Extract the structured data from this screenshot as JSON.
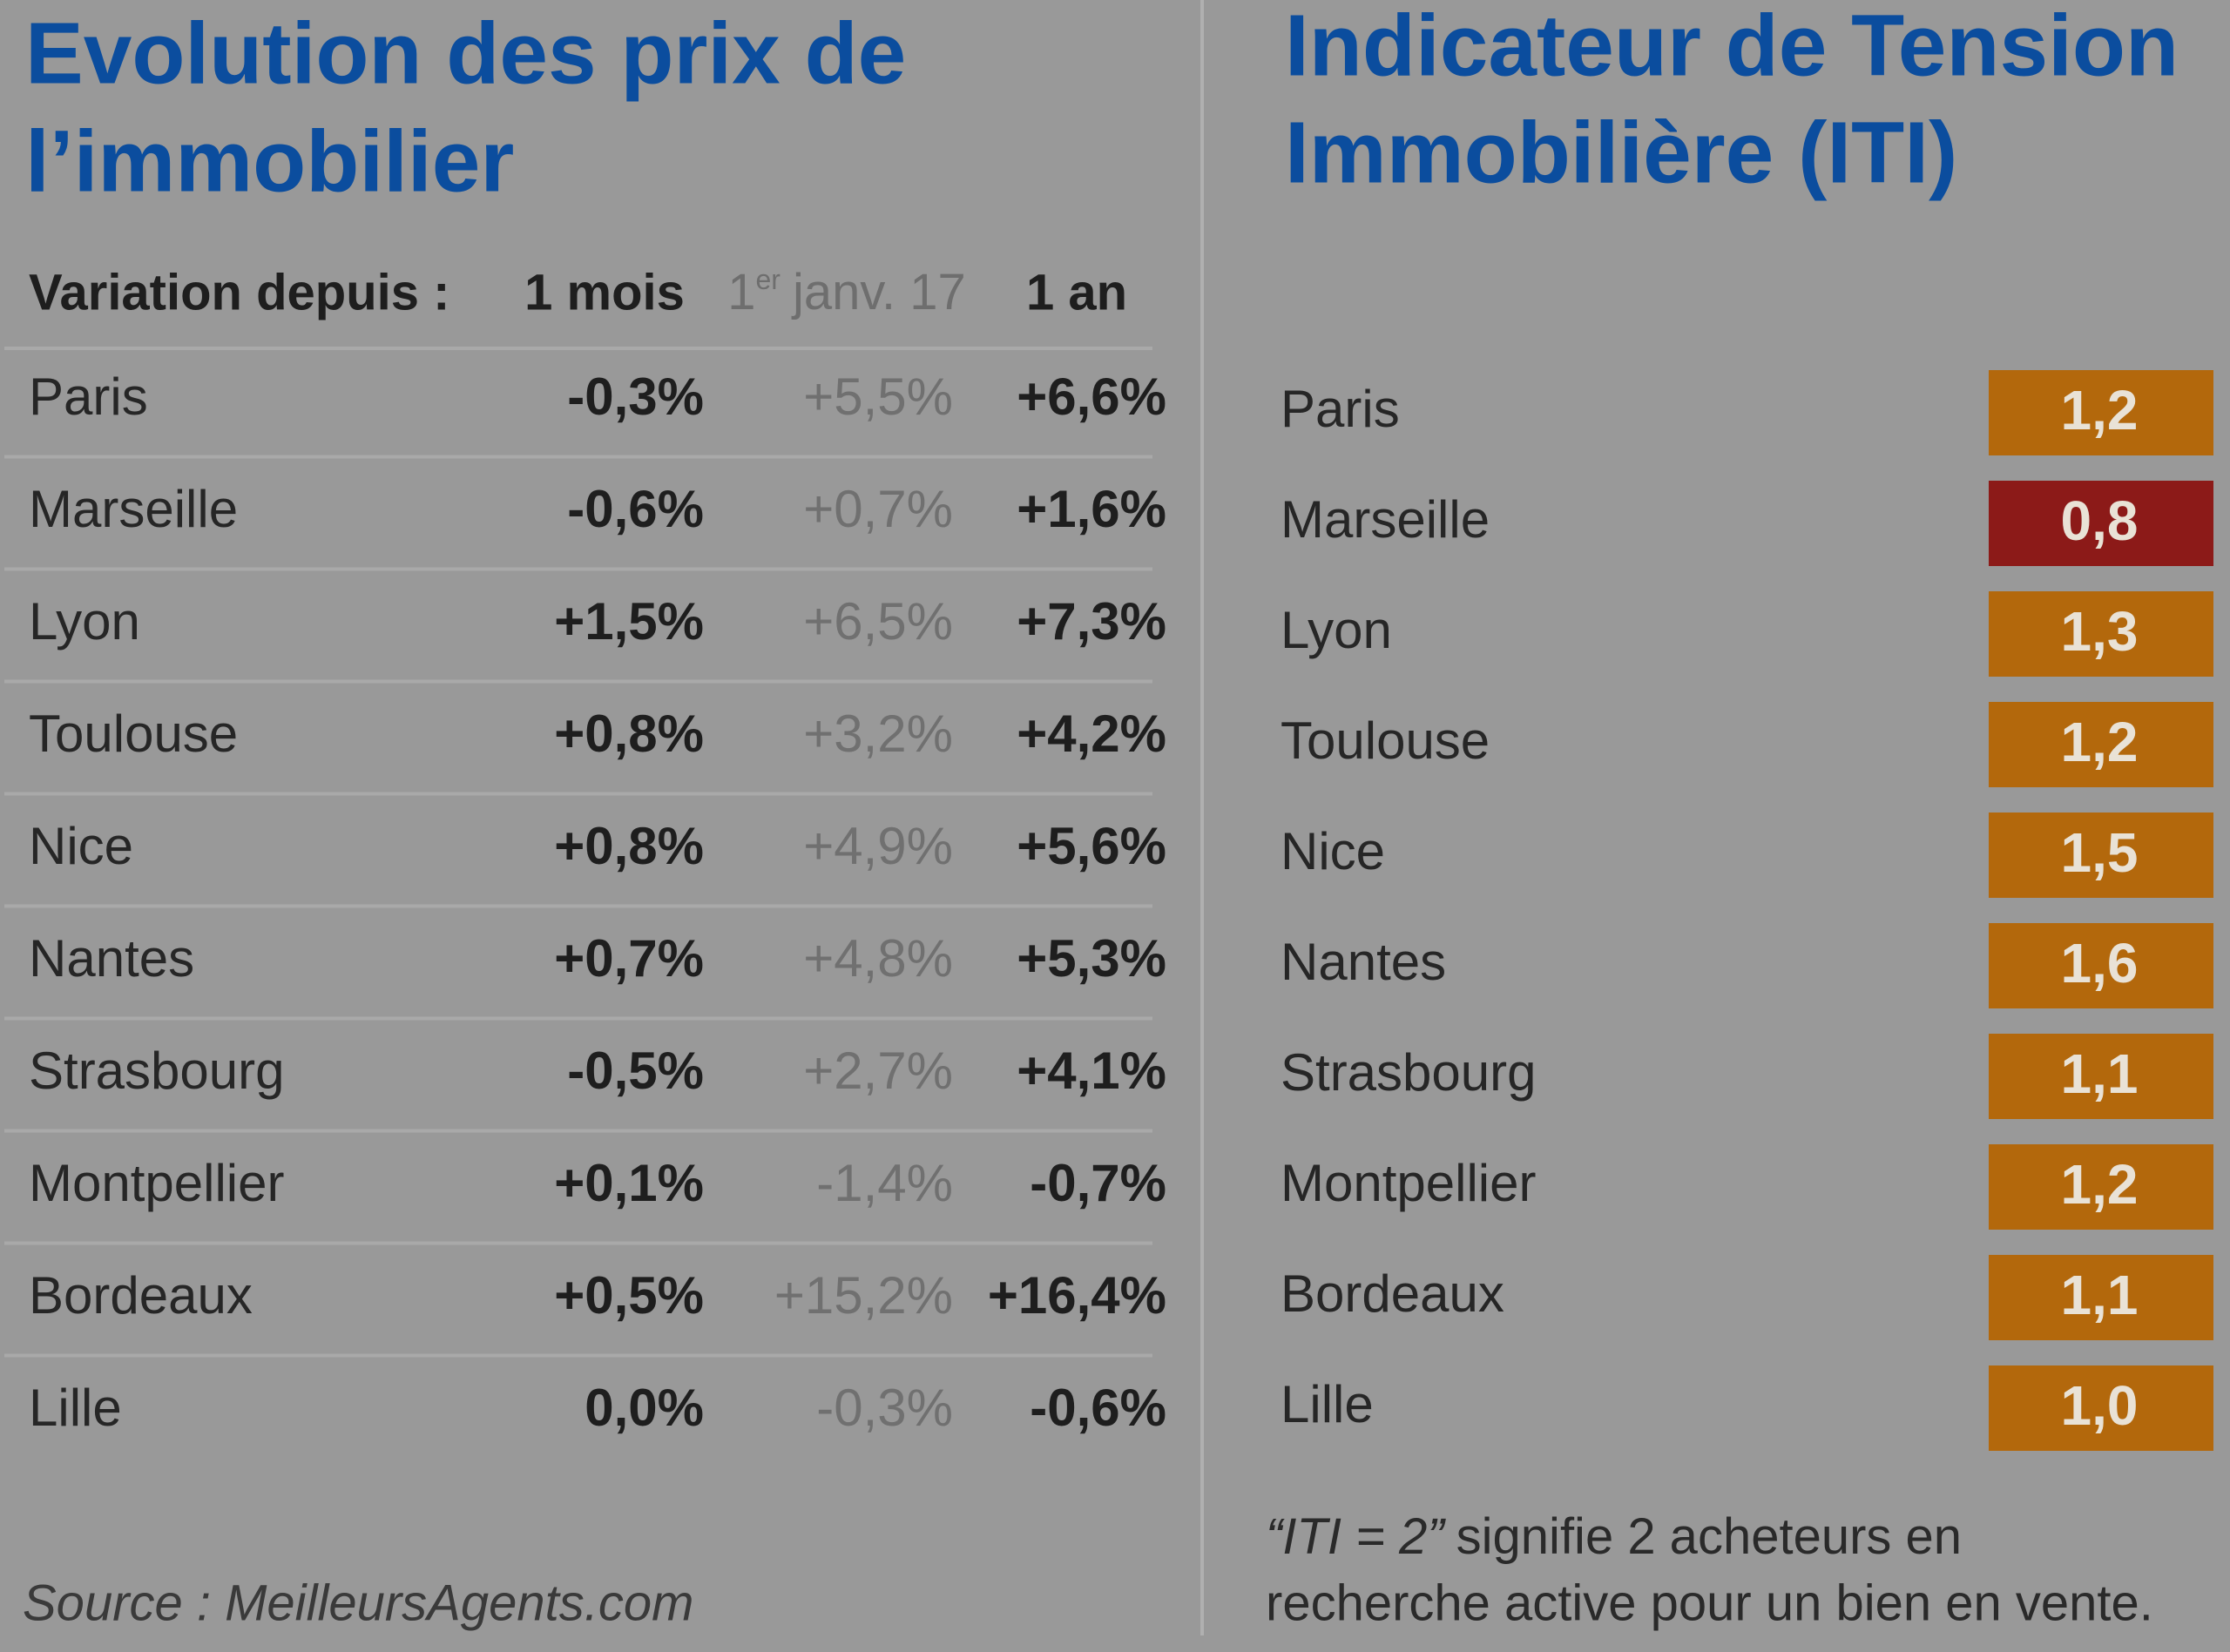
{
  "left": {
    "title": [
      "Evolution des prix de",
      "l’immobilier"
    ],
    "header": {
      "label": "Variation depuis :",
      "col1": "1 mois",
      "col2": {
        "main": "1",
        "sup": "er",
        "after": "janv. 17"
      },
      "col3": "1 an"
    },
    "rows": [
      [
        "Paris",
        "-0,3%",
        "+5,5%",
        "+6,6%"
      ],
      [
        "Marseille",
        "-0,6%",
        "+0,7%",
        "+1,6%"
      ],
      [
        "Lyon",
        "+1,5%",
        "+6,5%",
        "+7,3%"
      ],
      [
        "Toulouse",
        "+0,8%",
        "+3,2%",
        "+4,2%"
      ],
      [
        "Nice",
        "+0,8%",
        "+4,9%",
        "+5,6%"
      ],
      [
        "Nantes",
        "+0,7%",
        "+4,8%",
        "+5,3%"
      ],
      [
        "Strasbourg",
        "-0,5%",
        "+2,7%",
        "+4,1%"
      ],
      [
        "Montpellier",
        "+0,1%",
        "-1,4%",
        "-0,7%"
      ],
      [
        "Bordeaux",
        "+0,5%",
        "+15,2%",
        "+16,4%"
      ],
      [
        "Lille",
        "0,0%",
        "-0,3%",
        "-0,6%"
      ]
    ],
    "source": "Source : MeilleursAgents.com"
  },
  "right": {
    "title": [
      "Indicateur de Tension",
      "Immobilière (ITI)"
    ],
    "rows": [
      {
        "city": "Paris",
        "iti": "1,2",
        "color": "#b3680c"
      },
      {
        "city": "Marseille",
        "iti": "0,8",
        "color": "#8c1a18"
      },
      {
        "city": "Lyon",
        "iti": "1,3",
        "color": "#b3680c"
      },
      {
        "city": "Toulouse",
        "iti": "1,2",
        "color": "#b3680c"
      },
      {
        "city": "Nice",
        "iti": "1,5",
        "color": "#b3680c"
      },
      {
        "city": "Nantes",
        "iti": "1,6",
        "color": "#b3680c"
      },
      {
        "city": "Strasbourg",
        "iti": "1,1",
        "color": "#b3680c"
      },
      {
        "city": "Montpellier",
        "iti": "1,2",
        "color": "#b3680c"
      },
      {
        "city": "Bordeaux",
        "iti": "1,1",
        "color": "#b3680c"
      },
      {
        "city": "Lille",
        "iti": "1,0",
        "color": "#b3680c"
      }
    ],
    "note": {
      "italic": "“ITI = 2”",
      "line1": "signifie 2 acheteurs en",
      "line2": "recherche active pour un bien en vente."
    }
  }
}
